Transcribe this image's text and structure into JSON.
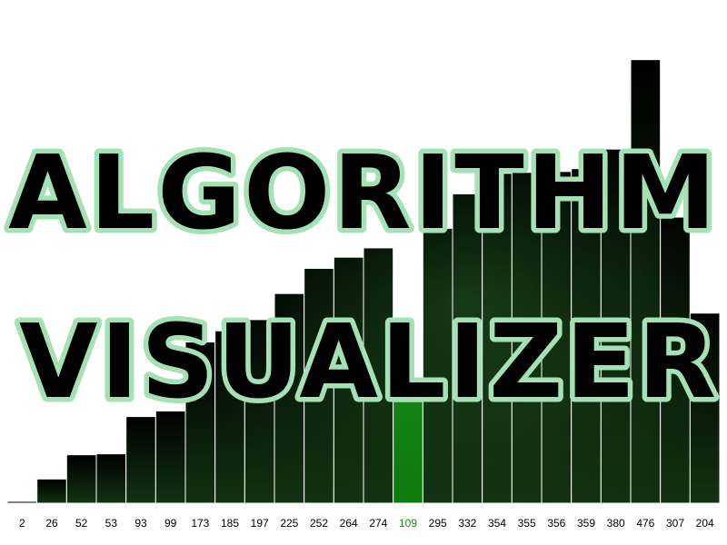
{
  "title": {
    "line1": "ALGORITHM",
    "line2": "VISUALIZER"
  },
  "colors": {
    "bar_top": "#000000",
    "bar_bottom": "#123212",
    "highlight_bar": "#0c7a0c",
    "highlight_label": "#2e7d1c",
    "bar_border": "#ffffff",
    "title_fill": "#000000",
    "title_outline": "#a4e2b6",
    "label_default": "#000000"
  },
  "chart_data": {
    "type": "bar",
    "values": [
      2,
      26,
      52,
      53,
      93,
      99,
      173,
      185,
      197,
      225,
      252,
      264,
      274,
      109,
      295,
      332,
      354,
      355,
      356,
      359,
      380,
      476,
      307,
      204
    ],
    "highlight_index": 13,
    "ylim": [
      0,
      540
    ]
  }
}
